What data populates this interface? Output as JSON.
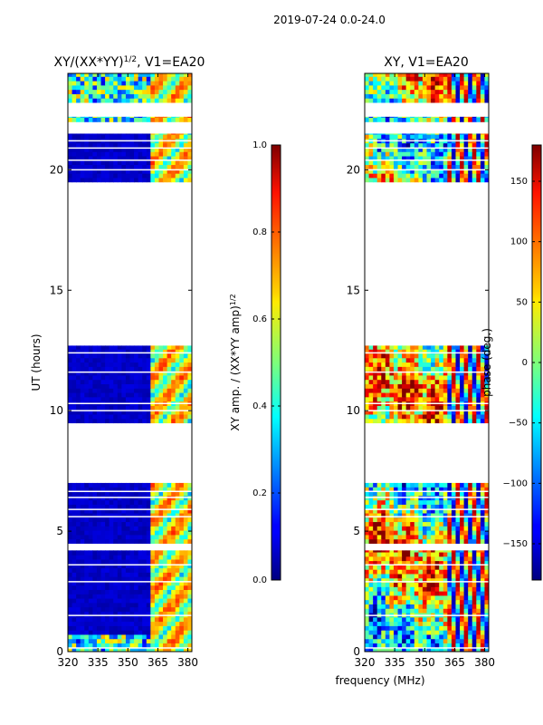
{
  "figure": {
    "suptitle": "2019-07-24 0.0-24.0",
    "xlabel": "frequency (MHz)"
  },
  "chart_data": [
    {
      "type": "heatmap",
      "title_main": "XY/(XX*YY)",
      "title_exp": "1/2",
      "title_suffix": ", V1=EA20",
      "xlabel": "",
      "ylabel": "UT (hours)",
      "xlim": [
        320,
        382
      ],
      "ylim": [
        0,
        24
      ],
      "xticks": [
        320,
        335,
        350,
        365,
        380
      ],
      "yticks": [
        0,
        5,
        10,
        15,
        20
      ],
      "data_bands_hours": [
        [
          0.0,
          1.5
        ],
        [
          1.5,
          4.2
        ],
        [
          4.5,
          7.0
        ],
        [
          9.5,
          12.7
        ],
        [
          19.5,
          21.5
        ],
        [
          22.0,
          22.2
        ],
        [
          22.8,
          24.0
        ]
      ],
      "colorbar": {
        "label_main": "XY amp. / (XX*YY amp)",
        "label_exp": "1/2",
        "min": 0.0,
        "max": 1.0,
        "ticks": [
          "0.0",
          "0.2",
          "0.4",
          "0.6",
          "0.8",
          "1.0"
        ],
        "colormap": "jet"
      }
    },
    {
      "type": "heatmap",
      "title_main": "XY, V1=EA20",
      "title_exp": "",
      "title_suffix": "",
      "xlabel": "",
      "ylabel": "",
      "xlim": [
        320,
        382
      ],
      "ylim": [
        0,
        24
      ],
      "xticks": [
        320,
        335,
        350,
        365,
        380
      ],
      "yticks": [
        0,
        5,
        10,
        15,
        20
      ],
      "data_bands_hours": [
        [
          0.0,
          4.2
        ],
        [
          4.5,
          7.0
        ],
        [
          9.5,
          12.7
        ],
        [
          19.5,
          21.5
        ],
        [
          22.0,
          22.2
        ],
        [
          22.8,
          24.0
        ]
      ],
      "colorbar": {
        "label_main": "phase (deg.)",
        "label_exp": "",
        "min": -180,
        "max": 180,
        "ticks": [
          "150",
          "100",
          "50",
          "0",
          "−50",
          "−100",
          "−150"
        ],
        "colormap": "jet"
      }
    }
  ]
}
